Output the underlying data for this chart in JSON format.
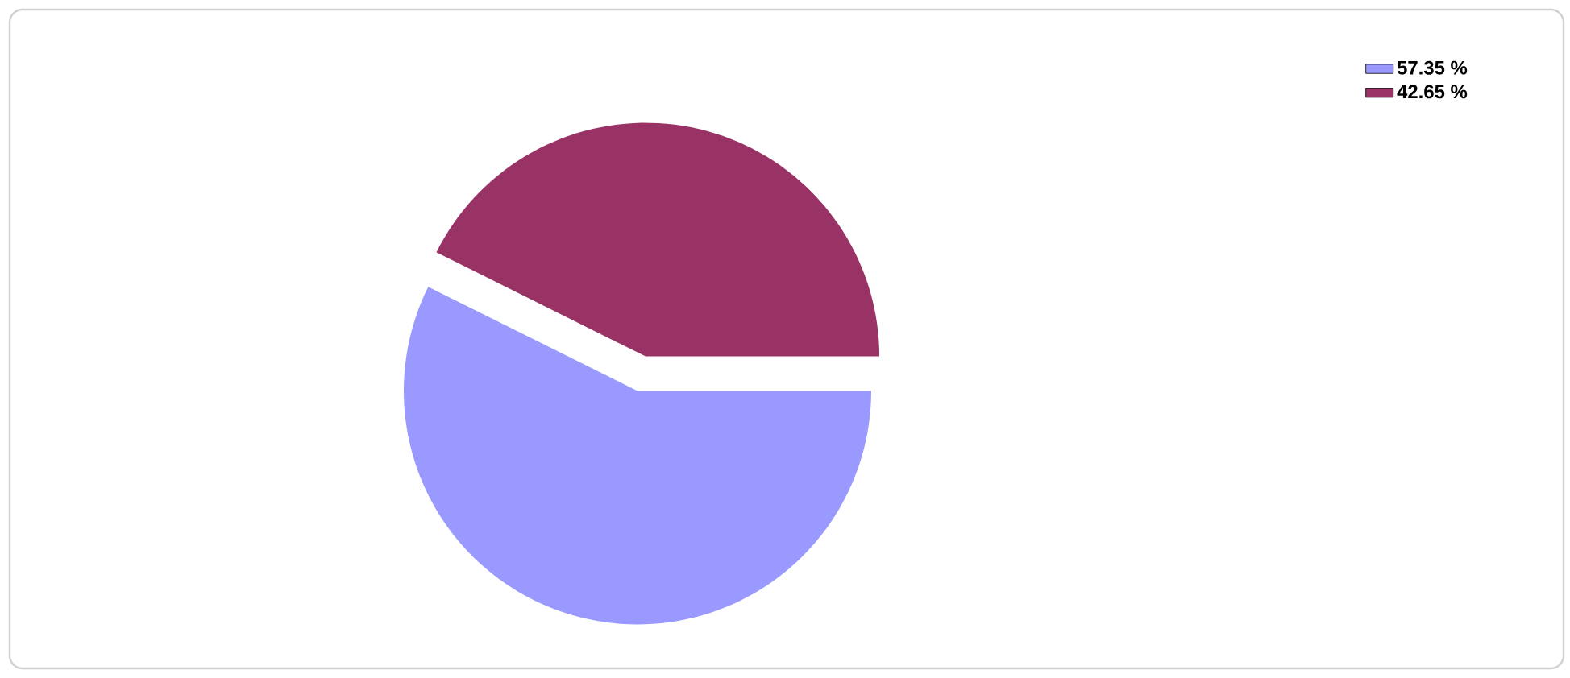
{
  "chart_data": {
    "type": "pie",
    "categories": [
      "57.35 %",
      "42.65 %"
    ],
    "values": [
      57.35,
      42.65
    ],
    "colors": [
      "#9999ff",
      "#993366"
    ],
    "legend": "top right"
  }
}
